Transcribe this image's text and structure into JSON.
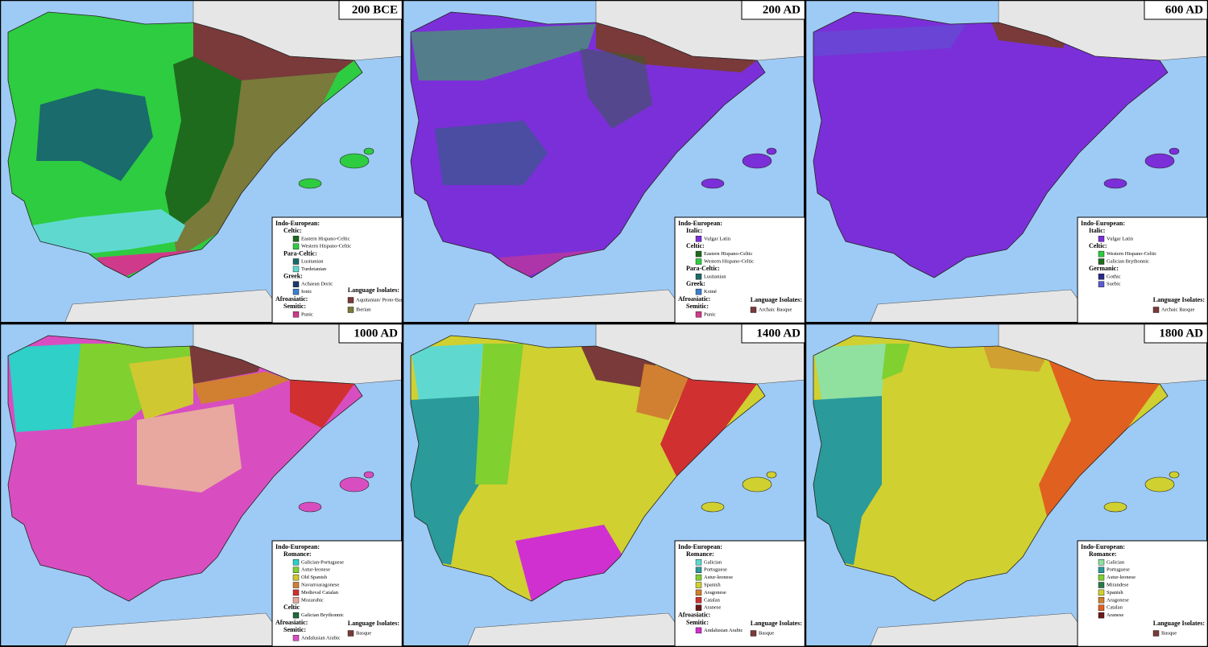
{
  "panels": [
    {
      "title": "200 BCE",
      "legend": [
        {
          "text": "Indo-European:",
          "level": 0
        },
        {
          "text": "Celtic:",
          "level": 1
        },
        {
          "text": "Eastern Hispano-Celtic",
          "level": 2,
          "color": "#1e6b1e"
        },
        {
          "text": "Western Hispano-Celtic",
          "level": 2,
          "color": "#2ecc40"
        },
        {
          "text": "Para-Celtic:",
          "level": 1
        },
        {
          "text": "Lusitanian",
          "level": 2,
          "color": "#1a6b6b"
        },
        {
          "text": "Turdetanian",
          "level": 2,
          "color": "#5fd9d0"
        },
        {
          "text": "Greek:",
          "level": 1
        },
        {
          "text": "Achaean Doric",
          "level": 2,
          "color": "#1a3a6b"
        },
        {
          "text": "Ionic",
          "level": 2,
          "color": "#3a7fd0"
        },
        {
          "text": "Afroasiatic:",
          "level": 0
        },
        {
          "text": "Semitic:",
          "level": 1
        },
        {
          "text": "Punic",
          "level": 2,
          "color": "#d03a8a"
        }
      ],
      "isolates": {
        "title": "Language Isolates:",
        "items": [
          {
            "text": "Aquitanian/ Proto-Basque",
            "color": "#7a3a3a"
          },
          {
            "text": "Iberian",
            "color": "#7a7a3a"
          }
        ]
      }
    },
    {
      "title": "200 AD",
      "legend": [
        {
          "text": "Indo-European:",
          "level": 0
        },
        {
          "text": "Italic:",
          "level": 1
        },
        {
          "text": "Vulgar Latin",
          "level": 2,
          "color": "#7b2fd8"
        },
        {
          "text": "Celtic:",
          "level": 1
        },
        {
          "text": "Eastern Hispano-Celtic",
          "level": 2,
          "color": "#1e6b1e"
        },
        {
          "text": "Western Hispano-Celtic",
          "level": 2,
          "color": "#2ecc40"
        },
        {
          "text": "Para-Celtic:",
          "level": 1
        },
        {
          "text": "Lusitanian",
          "level": 2,
          "color": "#1a6b6b"
        },
        {
          "text": "Greek:",
          "level": 1
        },
        {
          "text": "Koiné",
          "level": 2,
          "color": "#3a7fd0"
        },
        {
          "text": "Afroasiatic:",
          "level": 0
        },
        {
          "text": "Semitic:",
          "level": 1
        },
        {
          "text": "Punic",
          "level": 2,
          "color": "#d03a8a"
        }
      ],
      "isolates": {
        "title": "Language Isolates:",
        "items": [
          {
            "text": "Archaic Basque",
            "color": "#7a3a3a"
          }
        ]
      }
    },
    {
      "title": "600 AD",
      "legend": [
        {
          "text": "Indo-European:",
          "level": 0
        },
        {
          "text": "Italic:",
          "level": 1
        },
        {
          "text": "Vulgar Latin",
          "level": 2,
          "color": "#7b2fd8"
        },
        {
          "text": "Celtic:",
          "level": 1
        },
        {
          "text": "Western Hispano-Celtic",
          "level": 2,
          "color": "#2ecc40"
        },
        {
          "text": "Galician Brythonnic",
          "level": 2,
          "color": "#1e6b1e"
        },
        {
          "text": "Germanic:",
          "level": 1
        },
        {
          "text": "Gothic",
          "level": 2,
          "color": "#2a2a8a"
        },
        {
          "text": "Suebic",
          "level": 2,
          "color": "#5a5ad0"
        }
      ],
      "isolates": {
        "title": "Language Isolates:",
        "items": [
          {
            "text": "Archaic Basque",
            "color": "#7a3a3a"
          }
        ]
      }
    },
    {
      "title": "1000 AD",
      "legend": [
        {
          "text": "Indo-European:",
          "level": 0
        },
        {
          "text": "Romance:",
          "level": 1
        },
        {
          "text": "Galician-Portuguese",
          "level": 2,
          "color": "#2ed0c8"
        },
        {
          "text": "Astur-leonese",
          "level": 2,
          "color": "#80d030"
        },
        {
          "text": "Old Spanish",
          "level": 2,
          "color": "#d0c830"
        },
        {
          "text": "Navarroaragonese",
          "level": 2,
          "color": "#d08030"
        },
        {
          "text": "Medieval Catalan",
          "level": 2,
          "color": "#d03030"
        },
        {
          "text": "Mozarabic",
          "level": 2,
          "color": "#e8a8a0"
        },
        {
          "text": "Celtic",
          "level": 1
        },
        {
          "text": "Galician Brythonnic",
          "level": 2,
          "color": "#1e6b3a"
        },
        {
          "text": "Afroasiatic:",
          "level": 0
        },
        {
          "text": "Semitic:",
          "level": 1
        },
        {
          "text": "Andalusian Arabic",
          "level": 2,
          "color": "#d84ec0"
        }
      ],
      "isolates": {
        "title": "Language Isolates:",
        "items": [
          {
            "text": "Basque",
            "color": "#7a3a3a"
          }
        ]
      }
    },
    {
      "title": "1400 AD",
      "legend": [
        {
          "text": "Indo-European:",
          "level": 0
        },
        {
          "text": "Romance:",
          "level": 1
        },
        {
          "text": "Galician",
          "level": 2,
          "color": "#5fd9d0"
        },
        {
          "text": "Portuguese",
          "level": 2,
          "color": "#2a9a9a"
        },
        {
          "text": "Astur-leonese",
          "level": 2,
          "color": "#80d030"
        },
        {
          "text": "Spanish",
          "level": 2,
          "color": "#d0d030"
        },
        {
          "text": "Aragonese",
          "level": 2,
          "color": "#d08030"
        },
        {
          "text": "Catalan",
          "level": 2,
          "color": "#d03030"
        },
        {
          "text": "Aranese",
          "level": 2,
          "color": "#6b1a1a"
        },
        {
          "text": "Afroasiatic:",
          "level": 0
        },
        {
          "text": "Semitic:",
          "level": 1
        },
        {
          "text": "Andalusian Arabic",
          "level": 2,
          "color": "#d030d0"
        }
      ],
      "isolates": {
        "title": "Language Isolates:",
        "items": [
          {
            "text": "Basque",
            "color": "#7a3a3a"
          }
        ]
      }
    },
    {
      "title": "1800 AD",
      "legend": [
        {
          "text": "Indo-European:",
          "level": 0
        },
        {
          "text": "Romance:",
          "level": 1
        },
        {
          "text": "Galician",
          "level": 2,
          "color": "#90e0a0"
        },
        {
          "text": "Portuguese",
          "level": 2,
          "color": "#2a9a9a"
        },
        {
          "text": "Astur-leonese",
          "level": 2,
          "color": "#80d030"
        },
        {
          "text": "Mirandese",
          "level": 2,
          "color": "#2a7a4a"
        },
        {
          "text": "Spanish",
          "level": 2,
          "color": "#d0d030"
        },
        {
          "text": "Aragonese",
          "level": 2,
          "color": "#d08030"
        },
        {
          "text": "Catalan",
          "level": 2,
          "color": "#e06020"
        },
        {
          "text": "Aranese",
          "level": 2,
          "color": "#6b1a1a"
        }
      ],
      "isolates": {
        "title": "Language Isolates:",
        "items": [
          {
            "text": "Basque",
            "color": "#7a3a3a"
          }
        ]
      }
    }
  ]
}
